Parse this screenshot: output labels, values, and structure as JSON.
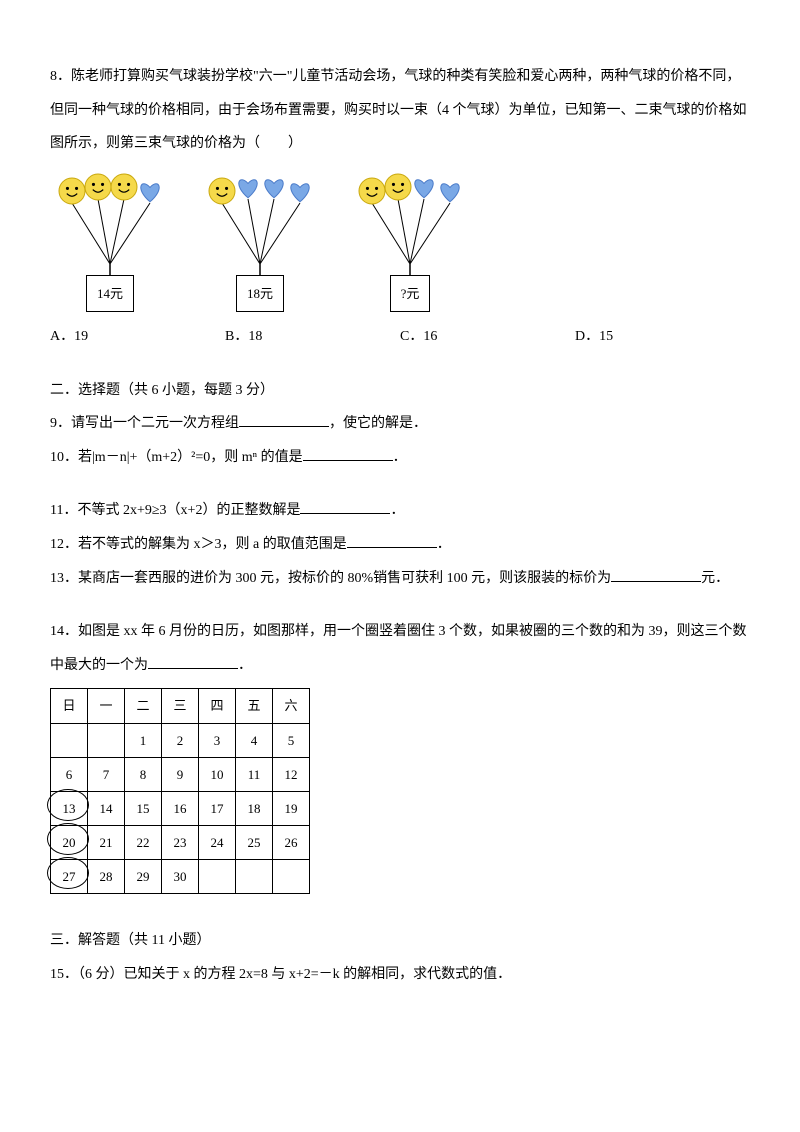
{
  "q8": {
    "text": "8．陈老师打算购买气球装扮学校\"六一\"儿童节活动会场，气球的种类有笑脸和爱心两种，两种气球的价格不同，但同一种气球的价格相同，由于会场布置需要，购买时以一束（4 个气球）为单位，已知第一、二束气球的价格如图所示，则第三束气球的价格为（　　）",
    "bundles": [
      {
        "label": "14元",
        "smiles": 3,
        "hearts": 1
      },
      {
        "label": "18元",
        "smiles": 1,
        "hearts": 3
      },
      {
        "label": "?元",
        "smiles": 2,
        "hearts": 2
      }
    ],
    "options": {
      "A": "A．19",
      "B": "B．18",
      "C": "C．16",
      "D": "D．15"
    }
  },
  "section2": "二．选择题（共 6 小题，每题 3 分）",
  "q9": {
    "pre": "9．请写出一个二元一次方程组",
    "post": "，使它的解是．"
  },
  "q10": {
    "pre": "10．若|m－n|+（m+2）²=0，则 mⁿ 的值是",
    "post": "．"
  },
  "q11": {
    "pre": "11．不等式 2x+9≥3（x+2）的正整数解是",
    "post": "．"
  },
  "q12": {
    "pre": "12．若不等式的解集为 x＞3，则 a 的取值范围是",
    "post": "．"
  },
  "q13": {
    "pre": "13．某商店一套西服的进价为 300 元，按标价的 80%销售可获利 100 元，则该服装的标价为",
    "post": "元．"
  },
  "q14": {
    "l1": "14．如图是 xx 年 6 月份的日历，如图那样，用一个圈竖着圈住 3 个数，如果被圈的三个数的和为 39，则这三个数中最大的一个为",
    "post": "．"
  },
  "calendar": {
    "headers": [
      "日",
      "一",
      "二",
      "三",
      "四",
      "五",
      "六"
    ],
    "rows": [
      [
        "",
        "",
        "1",
        "2",
        "3",
        "4",
        "5"
      ],
      [
        "6",
        "7",
        "8",
        "9",
        "10",
        "11",
        "12"
      ],
      [
        "13",
        "14",
        "15",
        "16",
        "17",
        "18",
        "19"
      ],
      [
        "20",
        "21",
        "22",
        "23",
        "24",
        "25",
        "26"
      ],
      [
        "27",
        "28",
        "29",
        "30",
        "",
        "",
        ""
      ]
    ],
    "circled": [
      [
        2,
        0
      ],
      [
        3,
        0
      ],
      [
        4,
        0
      ]
    ]
  },
  "section3": "三．解答题（共 11 小题）",
  "q15": "15．（6 分）已知关于 x 的方程 2x=8 与 x+2=－k 的解相同，求代数式的值．",
  "colors": {
    "smile": "#f5d94a",
    "smile_stroke": "#c9a80e",
    "heart": "#7aa8e6",
    "heart_stroke": "#4b7bc9"
  }
}
